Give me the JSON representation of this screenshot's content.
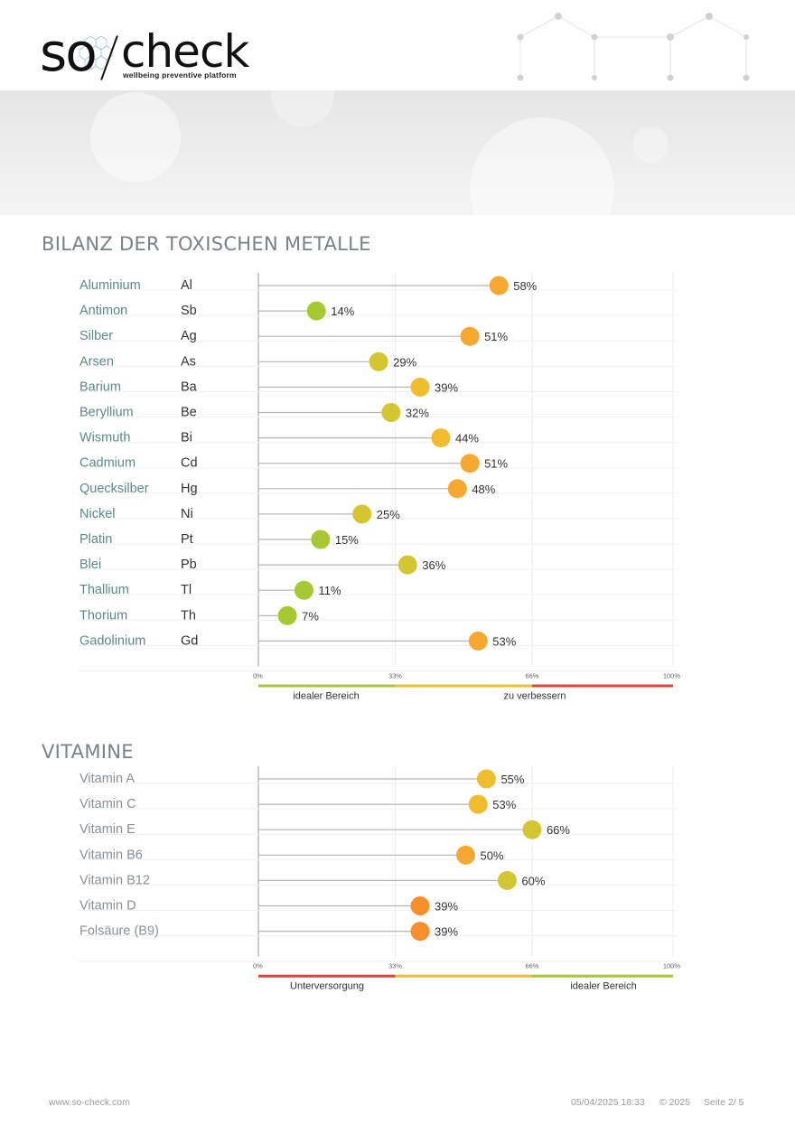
{
  "brand": {
    "logo_so": "SO",
    "logo_check": "check",
    "tagline": "wellbeing preventive platform"
  },
  "colors": {
    "label_metal": "#5a8a86",
    "label_vitamin": "#8a9094",
    "green": "#a7c832",
    "yellow_green": "#d4c533",
    "yellow": "#efbd2f",
    "orange": "#f7a830",
    "deep_orange": "#f78f2c",
    "red": "#e0433a"
  },
  "sections": {
    "metals_title": "BILANZ DER TOXISCHEN METALLE",
    "vitamins_title": "VITAMINE"
  },
  "chart_data": [
    {
      "type": "lollipop",
      "title": "BILANZ DER TOXISCHEN METALLE",
      "categories": [
        "Aluminium",
        "Antimon",
        "Silber",
        "Arsen",
        "Barium",
        "Beryllium",
        "Wismuth",
        "Cadmium",
        "Quecksilber",
        "Nickel",
        "Platin",
        "Blei",
        "Thallium",
        "Thorium",
        "Gadolinium"
      ],
      "symbols": [
        "Al",
        "Sb",
        "Ag",
        "As",
        "Ba",
        "Be",
        "Bi",
        "Cd",
        "Hg",
        "Ni",
        "Pt",
        "Pb",
        "Tl",
        "Th",
        "Gd"
      ],
      "values": [
        58,
        14,
        51,
        29,
        39,
        32,
        44,
        51,
        48,
        25,
        15,
        36,
        11,
        7,
        53
      ],
      "value_labels": [
        "58%",
        "14%",
        "51%",
        "29%",
        "39%",
        "32%",
        "44%",
        "51%",
        "48%",
        "25%",
        "15%",
        "36%",
        "11%",
        "7%",
        "53%"
      ],
      "dot_colors": [
        "#f7a830",
        "#a7c832",
        "#f7a830",
        "#d4c533",
        "#efbd2f",
        "#d4c533",
        "#efbd2f",
        "#f7a830",
        "#f7a830",
        "#d4c533",
        "#a7c832",
        "#d4c533",
        "#a7c832",
        "#a7c832",
        "#f7a830"
      ],
      "xlim": [
        0,
        100
      ],
      "ticks": [
        "0%",
        "33%",
        "66%",
        "100%"
      ],
      "scale_bar": [
        "#a7c832",
        "#efbd2f",
        "#e0433a"
      ],
      "range_labels": [
        "idealer Bereich",
        "zu verbessern"
      ]
    },
    {
      "type": "lollipop",
      "title": "VITAMINE",
      "categories": [
        "Vitamin A",
        "Vitamin C",
        "Vitamin E",
        "Vitamin B6",
        "Vitamin B12",
        "Vitamin D",
        "Folsäure (B9)"
      ],
      "values": [
        55,
        53,
        66,
        50,
        60,
        39,
        39
      ],
      "value_labels": [
        "55%",
        "53%",
        "66%",
        "50%",
        "60%",
        "39%",
        "39%"
      ],
      "dot_colors": [
        "#efbd2f",
        "#efbd2f",
        "#d4c533",
        "#f7a830",
        "#d4c533",
        "#f78f2c",
        "#f78f2c"
      ],
      "xlim": [
        0,
        100
      ],
      "ticks": [
        "0%",
        "33%",
        "66%",
        "100%"
      ],
      "scale_bar": [
        "#e0433a",
        "#efbd2f",
        "#a7c832"
      ],
      "range_labels": [
        "Unterversorgung",
        "idealer Bereich"
      ]
    }
  ],
  "footer": {
    "website": "www.so-check.com",
    "datetime": "05/04/2025 18:33",
    "copyright": "© 2025",
    "page": "Seite 2/ 5"
  }
}
